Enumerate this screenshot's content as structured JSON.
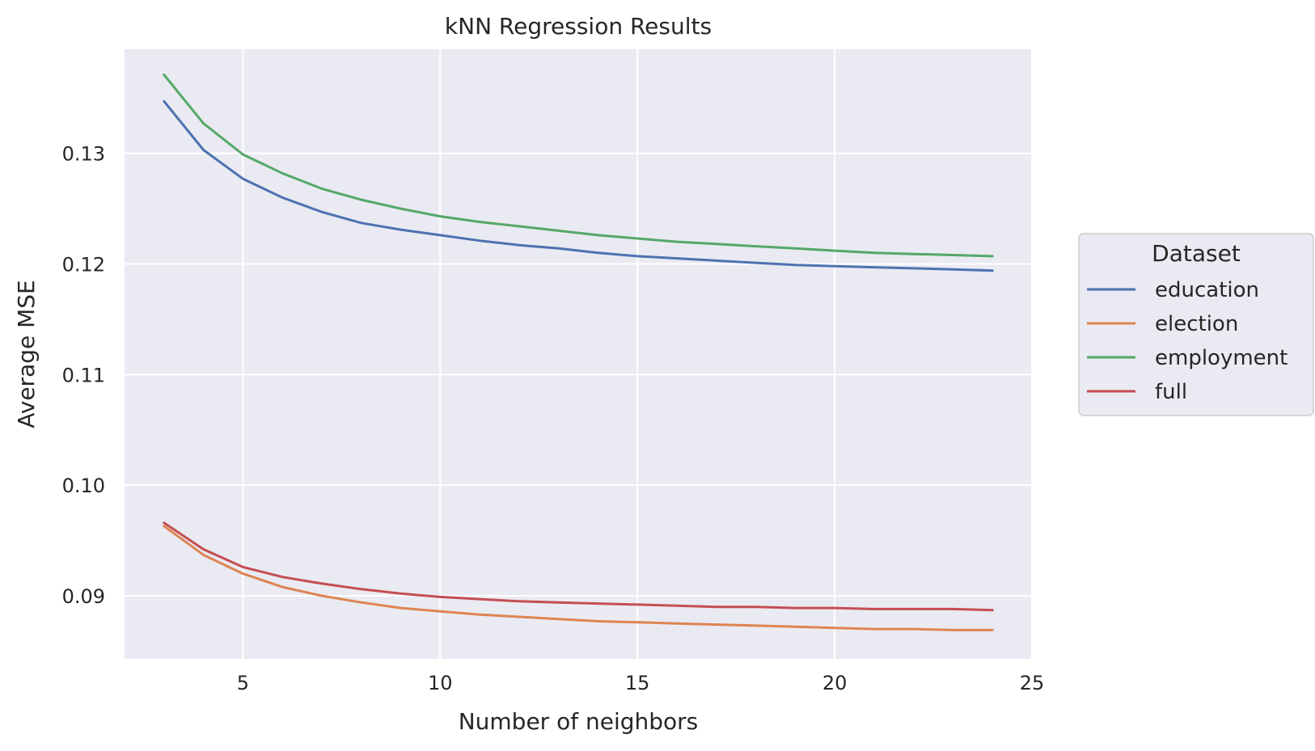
{
  "chart_data": {
    "type": "line",
    "title": "kNN Regression Results",
    "xlabel": "Number of neighbors",
    "ylabel": "Average MSE",
    "xlim": [
      2,
      25
    ],
    "ylim": [
      0.0843,
      0.1394
    ],
    "xticks": [
      5,
      10,
      15,
      20,
      25
    ],
    "xtick_labels": [
      "5",
      "10",
      "15",
      "20",
      "25"
    ],
    "yticks": [
      0.09,
      0.1,
      0.11,
      0.12,
      0.13
    ],
    "ytick_labels": [
      "0.09",
      "0.10",
      "0.11",
      "0.12",
      "0.13"
    ],
    "grid": true,
    "legend": {
      "title": "Dataset",
      "placement": "right"
    },
    "x": [
      3,
      4,
      5,
      6,
      7,
      8,
      9,
      10,
      11,
      12,
      13,
      14,
      15,
      16,
      17,
      18,
      19,
      20,
      21,
      22,
      23,
      24
    ],
    "series": [
      {
        "name": "education",
        "color": "#4c72b0",
        "values": [
          0.1347,
          0.1303,
          0.1277,
          0.126,
          0.1247,
          0.1237,
          0.1231,
          0.1226,
          0.1221,
          0.1217,
          0.1214,
          0.121,
          0.1207,
          0.1205,
          0.1203,
          0.1201,
          0.1199,
          0.1198,
          0.1197,
          0.1196,
          0.1195,
          0.1194
        ]
      },
      {
        "name": "election",
        "color": "#dd8452",
        "values": [
          0.0963,
          0.0937,
          0.092,
          0.0908,
          0.09,
          0.0894,
          0.0889,
          0.0886,
          0.0883,
          0.0881,
          0.0879,
          0.0877,
          0.0876,
          0.0875,
          0.0874,
          0.0873,
          0.0872,
          0.0871,
          0.087,
          0.087,
          0.0869,
          0.0869
        ]
      },
      {
        "name": "employment",
        "color": "#55a868",
        "values": [
          0.1371,
          0.1327,
          0.1299,
          0.1282,
          0.1268,
          0.1258,
          0.125,
          0.1243,
          0.1238,
          0.1234,
          0.123,
          0.1226,
          0.1223,
          0.122,
          0.1218,
          0.1216,
          0.1214,
          0.1212,
          0.121,
          0.1209,
          0.1208,
          0.1207
        ]
      },
      {
        "name": "full",
        "color": "#c44e52",
        "values": [
          0.0966,
          0.0942,
          0.0926,
          0.0917,
          0.0911,
          0.0906,
          0.0902,
          0.0899,
          0.0897,
          0.0895,
          0.0894,
          0.0893,
          0.0892,
          0.0891,
          0.089,
          0.089,
          0.0889,
          0.0889,
          0.0888,
          0.0888,
          0.0888,
          0.0887
        ]
      }
    ]
  }
}
